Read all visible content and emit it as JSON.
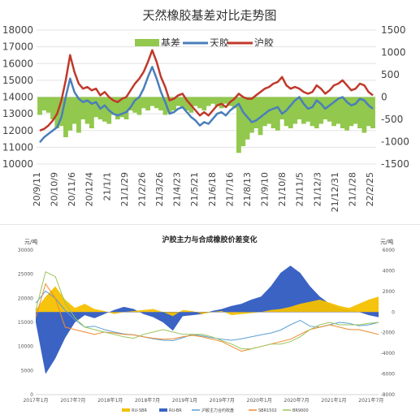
{
  "chart_data": [
    {
      "type": "line",
      "title": "天然橡胶基差对比走势图",
      "legend": {
        "position": "top",
        "items": [
          "基差",
          "天胶",
          "沪胶"
        ]
      },
      "ylim_left": [
        10000,
        18000
      ],
      "yticks_left": [
        10000,
        11000,
        12000,
        13000,
        14000,
        15000,
        16000,
        17000,
        18000
      ],
      "ylim_right": [
        -1500,
        1500
      ],
      "yticks_right": [
        -1500,
        -1000,
        -500,
        0,
        500,
        1000,
        1500
      ],
      "x_ticks": [
        "20/9/11",
        "20/10/9",
        "20/11/6",
        "20/12/4",
        "21/1/1",
        "21/1/29",
        "21/2/26",
        "21/3/26",
        "21/4/23",
        "21/5/21",
        "21/6/18",
        "21/7/16",
        "21/8/13",
        "21/9/10",
        "21/10/8",
        "21/11/5",
        "21/12/3",
        "21/12/31",
        "21/1/28",
        "22/2/25"
      ],
      "series": [
        {
          "name": "基差",
          "type": "area",
          "axis": "right",
          "color": "#92c84d",
          "values": [
            -400,
            -300,
            -350,
            -500,
            -700,
            -650,
            -900,
            -750,
            -600,
            -800,
            -500,
            -600,
            -700,
            -450,
            -500,
            -550,
            -600,
            -400,
            -500,
            -450,
            -500,
            -300,
            -350,
            -400,
            -250,
            -300,
            -200,
            -250,
            -300,
            -400,
            -350,
            -300,
            -200,
            -250,
            -300,
            -350,
            -200,
            -250,
            -300,
            -200,
            -150,
            -200,
            -250,
            -150,
            -200,
            -250,
            -1250,
            -1100,
            -950,
            -800,
            -700,
            -850,
            -650,
            -600,
            -700,
            -750,
            -500,
            -650,
            -700,
            -600,
            -500,
            -600,
            -550,
            -650,
            -700,
            -600,
            -500,
            -550,
            -650,
            -600,
            -700,
            -750,
            -650,
            -600,
            -700,
            -800,
            -650,
            -700
          ]
        },
        {
          "name": "天胶",
          "type": "line",
          "axis": "left",
          "color": "#4a7ebb",
          "values": [
            11300,
            11600,
            11800,
            12000,
            12200,
            12800,
            14000,
            15100,
            14300,
            13900,
            13700,
            13800,
            13600,
            13700,
            13300,
            13500,
            13200,
            13000,
            12900,
            13000,
            13100,
            13400,
            13800,
            14000,
            14500,
            15200,
            15800,
            15100,
            14300,
            13700,
            13000,
            13100,
            13300,
            13400,
            13100,
            12800,
            12600,
            12300,
            12500,
            12400,
            12700,
            13000,
            13100,
            12900,
            13200,
            13400,
            13600,
            13100,
            12800,
            12500,
            12600,
            12800,
            13000,
            13200,
            13300,
            13400,
            13000,
            13200,
            13500,
            13800,
            14000,
            13600,
            13300,
            13400,
            13800,
            13600,
            13300,
            13500,
            13700,
            13900,
            14000,
            13700,
            13500,
            13600,
            13900,
            13800,
            13500,
            13300
          ]
        },
        {
          "name": "沪胶",
          "type": "line",
          "axis": "left",
          "color": "#c0392b",
          "values": [
            12000,
            12100,
            12300,
            12600,
            13000,
            13800,
            15000,
            16500,
            15500,
            14800,
            14500,
            14600,
            14400,
            14500,
            14100,
            14300,
            14000,
            13800,
            13700,
            13900,
            14000,
            14400,
            14800,
            15100,
            15500,
            16100,
            16800,
            16100,
            15200,
            14600,
            13800,
            13900,
            14100,
            14200,
            13800,
            13500,
            13200,
            12900,
            13100,
            12900,
            13200,
            13500,
            13600,
            13400,
            13700,
            13900,
            14200,
            14000,
            13900,
            13900,
            14100,
            14300,
            14500,
            14600,
            14800,
            14900,
            15200,
            14700,
            14500,
            14600,
            14500,
            14300,
            14200,
            14300,
            14700,
            14500,
            14200,
            14400,
            14700,
            14800,
            15000,
            14700,
            14400,
            14500,
            14800,
            14700,
            14300,
            14100
          ]
        }
      ]
    },
    {
      "type": "line",
      "title": "沪胶主力与合成橡胶价差变化",
      "ylabel_left": "元/吨",
      "ylabel_right": "元/吨",
      "ylim_left": [
        0,
        30000
      ],
      "yticks_left": [
        0,
        5000,
        10000,
        15000,
        20000,
        25000,
        30000
      ],
      "ylim_right": [
        -8000,
        6000
      ],
      "yticks_right": [
        -8000,
        -6000,
        -4000,
        -2000,
        0,
        2000,
        4000,
        6000
      ],
      "x_ticks": [
        "2017年1月",
        "2017年7月",
        "2018年1月",
        "2018年7月",
        "2019年1月",
        "2019年7月",
        "2020年1月",
        "2020年7月",
        "2021年1月",
        "2021年7月"
      ],
      "legend": {
        "position": "bottom",
        "items": [
          "RU-SBR",
          "RU-BR",
          "沪胶主力合约收盘",
          "SBR1502",
          "BR9000"
        ]
      },
      "series": [
        {
          "name": "RU-SBR",
          "type": "area",
          "axis": "right",
          "color": "#f5c000",
          "values": [
            200,
            1500,
            2500,
            1200,
            400,
            800,
            300,
            100,
            -200,
            0,
            100,
            200,
            300,
            0,
            -400,
            200,
            100,
            -200,
            0,
            100,
            -300,
            -200,
            -100,
            0,
            200,
            300,
            500,
            800,
            1000,
            1200,
            900,
            600,
            400,
            800,
            1200,
            1500
          ]
        },
        {
          "name": "RU-BR",
          "type": "area",
          "axis": "right",
          "color": "#3a63c4",
          "values": [
            -1000,
            -6000,
            -4500,
            -2500,
            -1000,
            -300,
            -600,
            -200,
            200,
            500,
            300,
            -200,
            -500,
            -1000,
            -1800,
            -400,
            -300,
            -200,
            100,
            300,
            600,
            800,
            1200,
            1500,
            2500,
            3800,
            4500,
            3800,
            2500,
            1500,
            800,
            400,
            200,
            0,
            -300,
            -500
          ]
        },
        {
          "name": "沪胶主力合约收盘",
          "type": "line",
          "axis": "left",
          "color": "#5a9fd4",
          "values": [
            19000,
            21500,
            20000,
            17500,
            15500,
            14000,
            14200,
            13500,
            13000,
            12600,
            12400,
            12000,
            11600,
            11300,
            11200,
            11800,
            12500,
            12200,
            11800,
            11500,
            11300,
            11600,
            12000,
            12400,
            12800,
            13400,
            14500,
            15400,
            14200,
            14000,
            14500,
            15000,
            14800,
            14300,
            14500,
            15000
          ]
        },
        {
          "name": "SBR1502",
          "type": "line",
          "axis": "left",
          "color": "#ed8a2c",
          "values": [
            16000,
            23000,
            20000,
            14000,
            13500,
            13000,
            12500,
            13000,
            12800,
            12500,
            12400,
            12000,
            11700,
            11500,
            11600,
            12000,
            12300,
            12000,
            11500,
            11000,
            10000,
            9000,
            9500,
            10000,
            10500,
            11000,
            11500,
            12500,
            13500,
            14000,
            14500,
            14000,
            13500,
            13500,
            13000,
            12500
          ]
        },
        {
          "name": "BR9000",
          "type": "line",
          "axis": "left",
          "color": "#9bc45a",
          "values": [
            17500,
            25500,
            24500,
            19000,
            16000,
            14000,
            13500,
            13000,
            12500,
            12000,
            11700,
            12500,
            13000,
            13500,
            13000,
            12500,
            12500,
            12500,
            12000,
            11200,
            10500,
            9500,
            9500,
            10000,
            10500,
            10500,
            11000,
            12000,
            13500,
            14500,
            15000,
            14500,
            14500,
            14500,
            14800,
            15000
          ]
        }
      ]
    }
  ]
}
